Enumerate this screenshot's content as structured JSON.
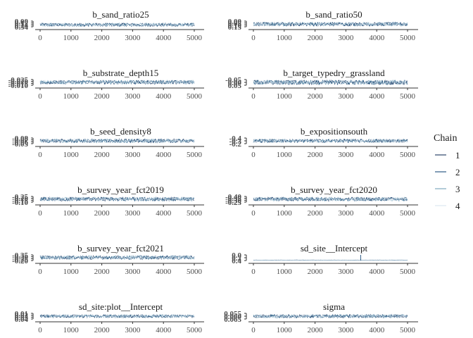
{
  "chart_data": {
    "type": "line",
    "x": {
      "range": [
        1,
        5000
      ],
      "ticks": [
        0,
        1000,
        2000,
        3000,
        4000,
        5000
      ]
    },
    "legend": {
      "title": "Chain",
      "position": "right",
      "entries": [
        {
          "label": "1",
          "color": "#011f4b"
        },
        {
          "label": "2",
          "color": "#03396c"
        },
        {
          "label": "3",
          "color": "#6497b1"
        },
        {
          "label": "4",
          "color": "#d4e3ee"
        }
      ]
    },
    "panels": [
      {
        "title": "b_sand_ratio25",
        "yticks": [
          "0.34",
          "0.24",
          "0.12",
          "0.00"
        ],
        "series": [
          {
            "chain": "1",
            "center": 0.12,
            "spread": 0.1
          },
          {
            "chain": "2",
            "center": 0.12,
            "spread": 0.1
          },
          {
            "chain": "3",
            "center": 0.12,
            "spread": 0.1
          },
          {
            "chain": "4",
            "center": 0.12,
            "spread": 0.1
          }
        ]
      },
      {
        "title": "b_sand_ratio50",
        "yticks": [
          "0.15",
          "0.10",
          "0.05",
          "0.00"
        ],
        "series": [
          {
            "chain": "1",
            "center": 0.07,
            "spread": 0.05
          },
          {
            "chain": "2",
            "center": 0.07,
            "spread": 0.05
          },
          {
            "chain": "3",
            "center": 0.07,
            "spread": 0.05
          },
          {
            "chain": "4",
            "center": 0.07,
            "spread": 0.05
          }
        ]
      },
      {
        "title": "b_substrate_depth15",
        "yticks": [
          "-0.010",
          "-0.015",
          "-0.020",
          "-0.025"
        ],
        "series": [
          {
            "chain": "1",
            "center": -0.017,
            "spread": 0.005
          },
          {
            "chain": "2",
            "center": -0.017,
            "spread": 0.005
          },
          {
            "chain": "3",
            "center": -0.017,
            "spread": 0.005
          },
          {
            "chain": "4",
            "center": -0.017,
            "spread": 0.005
          }
        ]
      },
      {
        "title": "b_target_typedry_grassland",
        "yticks": [
          "0.05",
          "0.00",
          "-0.05"
        ],
        "series": [
          {
            "chain": "1",
            "center": 0.0,
            "spread": 0.04
          },
          {
            "chain": "2",
            "center": 0.0,
            "spread": 0.04
          },
          {
            "chain": "3",
            "center": 0.0,
            "spread": 0.04
          },
          {
            "chain": "4",
            "center": 0.0,
            "spread": 0.04
          }
        ]
      },
      {
        "title": "b_seed_density8",
        "yticks": [
          "-0.05",
          "-0.06",
          "-0.07",
          "-0.08"
        ],
        "series": [
          {
            "chain": "1",
            "center": -0.065,
            "spread": 0.01
          },
          {
            "chain": "2",
            "center": -0.065,
            "spread": 0.01
          },
          {
            "chain": "3",
            "center": -0.065,
            "spread": 0.01
          },
          {
            "chain": "4",
            "center": -0.065,
            "spread": 0.01
          }
        ]
      },
      {
        "title": "b_expositionsouth",
        "yticks": [
          "-0.2",
          "-0.3",
          "-0.4"
        ],
        "series": [
          {
            "chain": "1",
            "center": -0.3,
            "spread": 0.06
          },
          {
            "chain": "2",
            "center": -0.3,
            "spread": 0.06
          },
          {
            "chain": "3",
            "center": -0.3,
            "spread": 0.06
          },
          {
            "chain": "4",
            "center": -0.3,
            "spread": 0.06
          }
        ]
      },
      {
        "title": "b_survey_year_fct2019",
        "yticks": [
          "-0.10",
          "-0.15",
          "-0.20",
          "-0.25"
        ],
        "series": [
          {
            "chain": "1",
            "center": -0.17,
            "spread": 0.05
          },
          {
            "chain": "2",
            "center": -0.17,
            "spread": 0.05
          },
          {
            "chain": "3",
            "center": -0.17,
            "spread": 0.05
          },
          {
            "chain": "4",
            "center": -0.17,
            "spread": 0.05
          }
        ]
      },
      {
        "title": "b_survey_year_fct2020",
        "yticks": [
          "-0.25",
          "-0.30",
          "-0.35",
          "-0.40"
        ],
        "series": [
          {
            "chain": "1",
            "center": -0.32,
            "spread": 0.05
          },
          {
            "chain": "2",
            "center": -0.32,
            "spread": 0.05
          },
          {
            "chain": "3",
            "center": -0.32,
            "spread": 0.05
          },
          {
            "chain": "4",
            "center": -0.32,
            "spread": 0.05
          }
        ]
      },
      {
        "title": "b_survey_year_fct2021",
        "yticks": [
          "-0.20",
          "-0.25",
          "-0.30",
          "-0.35"
        ],
        "series": [
          {
            "chain": "1",
            "center": -0.27,
            "spread": 0.05
          },
          {
            "chain": "2",
            "center": -0.27,
            "spread": 0.05
          },
          {
            "chain": "3",
            "center": -0.27,
            "spread": 0.05
          },
          {
            "chain": "4",
            "center": -0.27,
            "spread": 0.05
          }
        ]
      },
      {
        "title": "sd_site__Intercept",
        "yticks": [
          "0.4",
          "0.2",
          "0.0"
        ],
        "series": [
          {
            "chain": "1",
            "center": 0.03,
            "spread": 0.01
          },
          {
            "chain": "2",
            "center": 0.03,
            "spread": 0.01
          },
          {
            "chain": "3",
            "center": 0.03,
            "spread": 0.01
          },
          {
            "chain": "4",
            "center": 0.03,
            "spread": 0.01
          }
        ]
      },
      {
        "title": "sd_site:plot__Intercept",
        "yticks": [
          "0.04",
          "0.03",
          "0.02",
          "0.01"
        ],
        "series": [
          {
            "chain": "1",
            "center": 0.025,
            "spread": 0.008
          },
          {
            "chain": "2",
            "center": 0.025,
            "spread": 0.008
          },
          {
            "chain": "3",
            "center": 0.025,
            "spread": 0.008
          },
          {
            "chain": "4",
            "center": 0.025,
            "spread": 0.008
          }
        ]
      },
      {
        "title": "sigma",
        "yticks": [
          "0.065",
          "0.060",
          "0.055"
        ],
        "series": [
          {
            "chain": "1",
            "center": 0.06,
            "spread": 0.003
          },
          {
            "chain": "2",
            "center": 0.06,
            "spread": 0.003
          },
          {
            "chain": "3",
            "center": 0.06,
            "spread": 0.003
          },
          {
            "chain": "4",
            "center": 0.06,
            "spread": 0.003
          }
        ]
      }
    ]
  }
}
